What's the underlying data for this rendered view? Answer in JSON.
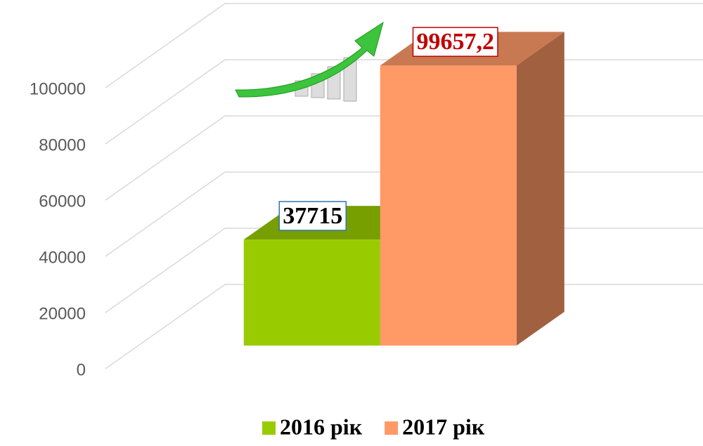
{
  "chart_data": {
    "type": "bar3d",
    "categories": [
      null
    ],
    "series": [
      {
        "name": "2016 рік",
        "color": "#99cc00",
        "values": [
          37715
        ],
        "value_labels": [
          "37715"
        ]
      },
      {
        "name": "2017 рік",
        "color": "#ff9966",
        "values": [
          99657.2
        ],
        "value_labels": [
          "99657,2"
        ]
      }
    ],
    "ylim": [
      0,
      100000
    ],
    "yticks": [
      0,
      20000,
      40000,
      60000,
      80000,
      100000
    ],
    "grid": true,
    "legend": "bottom"
  }
}
